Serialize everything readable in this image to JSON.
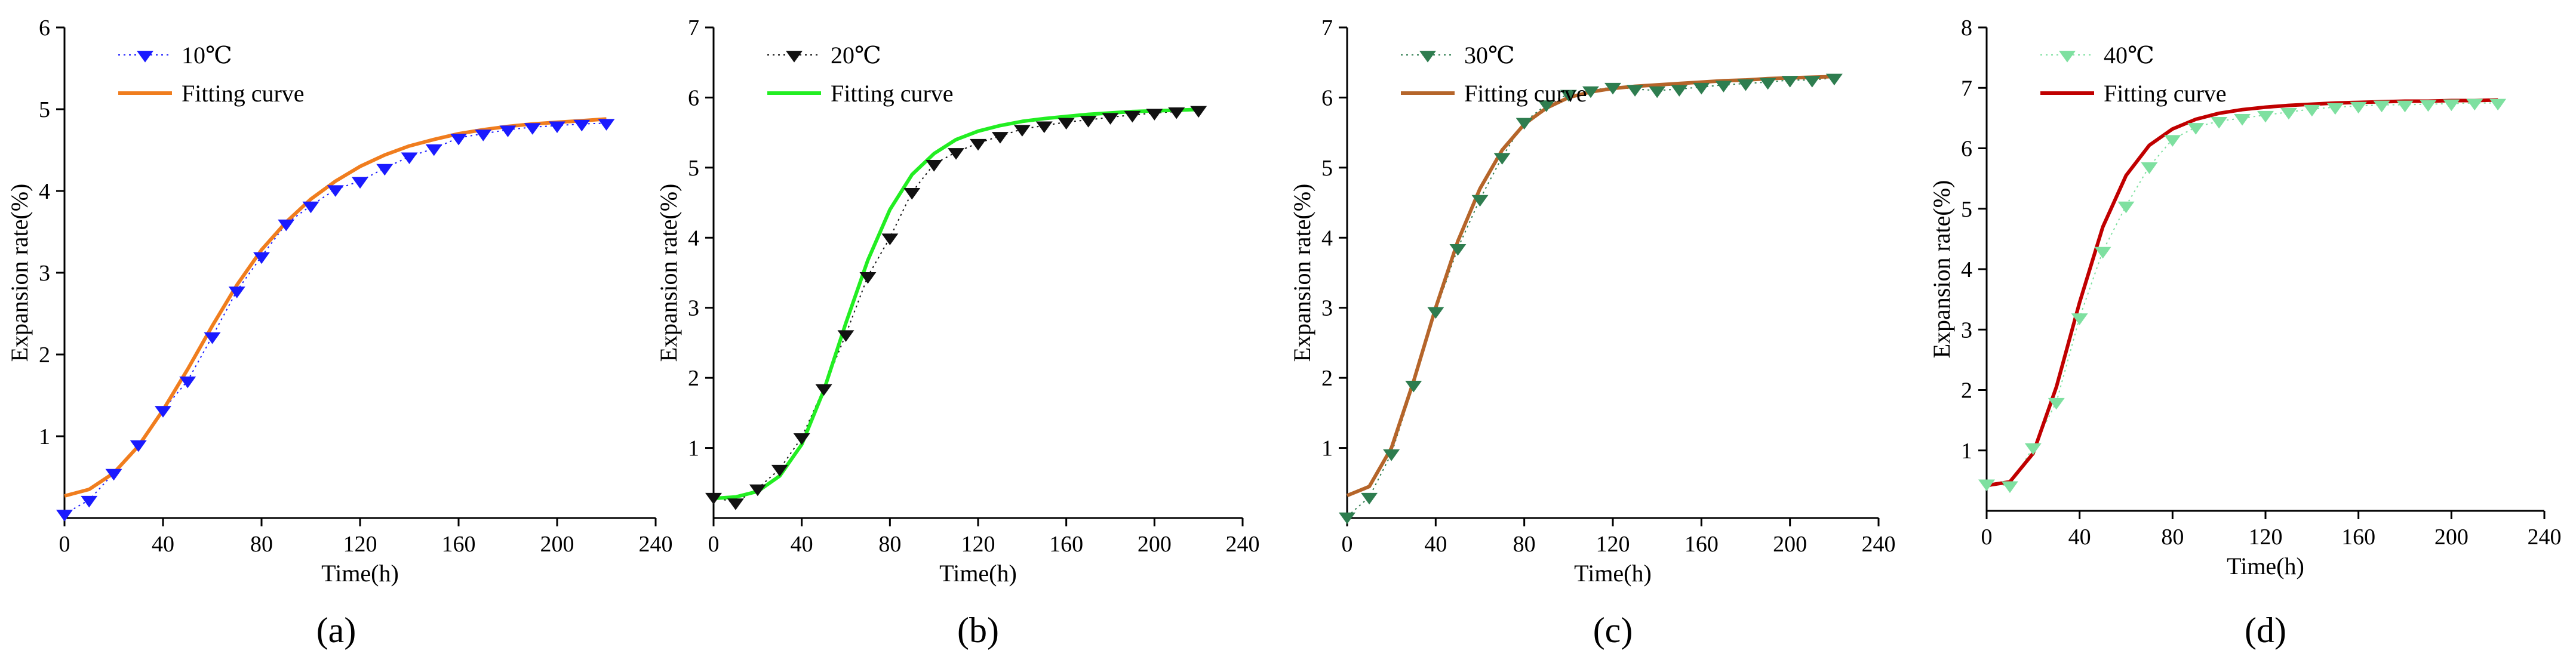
{
  "chart_data": [
    {
      "type": "scatter",
      "panel_label": "(a)",
      "xlabel": "Time(h)",
      "ylabel": "Expansion rate(%)",
      "xlim": [
        0,
        240
      ],
      "ylim": [
        0,
        6
      ],
      "xticks": [
        "0",
        "40",
        "80",
        "120",
        "160",
        "200",
        "240"
      ],
      "yticks": [
        "1",
        "2",
        "3",
        "4",
        "5",
        "6"
      ],
      "legend_position": "top-left",
      "series": [
        {
          "name": "10℃",
          "kind": "markers",
          "marker": "triangle-down",
          "color": "#1a1aff",
          "x": [
            0,
            10,
            20,
            30,
            40,
            50,
            60,
            70,
            80,
            90,
            100,
            110,
            120,
            130,
            140,
            150,
            160,
            170,
            180,
            190,
            200,
            210,
            220
          ],
          "y": [
            0.05,
            0.22,
            0.55,
            0.9,
            1.32,
            1.68,
            2.22,
            2.78,
            3.2,
            3.6,
            3.82,
            4.02,
            4.12,
            4.28,
            4.42,
            4.52,
            4.65,
            4.7,
            4.75,
            4.78,
            4.8,
            4.82,
            4.83
          ]
        },
        {
          "name": "Fitting curve",
          "kind": "line",
          "color": "#f07d1e",
          "x": [
            0,
            10,
            20,
            30,
            40,
            50,
            60,
            70,
            80,
            90,
            100,
            110,
            120,
            130,
            140,
            150,
            160,
            170,
            180,
            190,
            200,
            210,
            220
          ],
          "y": [
            0.27,
            0.35,
            0.55,
            0.88,
            1.32,
            1.82,
            2.35,
            2.85,
            3.28,
            3.62,
            3.9,
            4.12,
            4.3,
            4.44,
            4.55,
            4.63,
            4.7,
            4.75,
            4.79,
            4.82,
            4.84,
            4.86,
            4.88
          ]
        }
      ]
    },
    {
      "type": "scatter",
      "panel_label": "(b)",
      "xlabel": "Time(h)",
      "ylabel": "Expansion rate(%)",
      "xlim": [
        0,
        240
      ],
      "ylim": [
        0,
        7
      ],
      "xticks": [
        "0",
        "40",
        "80",
        "120",
        "160",
        "200",
        "240"
      ],
      "yticks": [
        "1",
        "2",
        "3",
        "4",
        "5",
        "6",
        "7"
      ],
      "legend_position": "top-left",
      "series": [
        {
          "name": "20℃",
          "kind": "markers",
          "marker": "triangle-down",
          "color": "#111111",
          "x": [
            0,
            10,
            20,
            30,
            40,
            50,
            60,
            70,
            80,
            90,
            100,
            110,
            120,
            130,
            140,
            150,
            160,
            170,
            180,
            190,
            200,
            210,
            220
          ],
          "y": [
            0.3,
            0.22,
            0.42,
            0.7,
            1.15,
            1.85,
            2.62,
            3.45,
            4.0,
            4.65,
            5.05,
            5.22,
            5.35,
            5.45,
            5.55,
            5.6,
            5.65,
            5.68,
            5.72,
            5.75,
            5.78,
            5.8,
            5.82
          ]
        },
        {
          "name": "Fitting curve",
          "kind": "line",
          "color": "#22ee22",
          "x": [
            0,
            10,
            20,
            30,
            40,
            50,
            60,
            70,
            80,
            90,
            100,
            110,
            120,
            130,
            140,
            150,
            160,
            170,
            180,
            190,
            200,
            210,
            220
          ],
          "y": [
            0.28,
            0.3,
            0.38,
            0.6,
            1.05,
            1.82,
            2.78,
            3.68,
            4.4,
            4.9,
            5.2,
            5.4,
            5.52,
            5.6,
            5.66,
            5.7,
            5.73,
            5.76,
            5.78,
            5.8,
            5.81,
            5.82,
            5.83
          ]
        }
      ]
    },
    {
      "type": "scatter",
      "panel_label": "(c)",
      "xlabel": "Time(h)",
      "ylabel": "Expansion rate(%)",
      "xlim": [
        0,
        240
      ],
      "ylim": [
        0,
        7
      ],
      "xticks": [
        "0",
        "40",
        "80",
        "120",
        "160",
        "200",
        "240"
      ],
      "yticks": [
        "1",
        "2",
        "3",
        "4",
        "5",
        "6",
        "7"
      ],
      "legend_position": "top-left",
      "series": [
        {
          "name": "30℃",
          "kind": "markers",
          "marker": "triangle-down",
          "color": "#2e7d4f",
          "x": [
            0,
            10,
            20,
            30,
            40,
            50,
            60,
            70,
            80,
            90,
            100,
            110,
            120,
            130,
            140,
            150,
            160,
            170,
            180,
            190,
            200,
            210,
            220
          ],
          "y": [
            0.02,
            0.3,
            0.92,
            1.9,
            2.95,
            3.85,
            4.55,
            5.15,
            5.65,
            5.9,
            6.05,
            6.1,
            6.15,
            6.12,
            6.1,
            6.12,
            6.15,
            6.18,
            6.2,
            6.22,
            6.25,
            6.25,
            6.28
          ]
        },
        {
          "name": "Fitting curve",
          "kind": "line",
          "color": "#b5652a",
          "x": [
            0,
            10,
            20,
            30,
            40,
            50,
            60,
            70,
            80,
            90,
            100,
            110,
            120,
            130,
            140,
            150,
            160,
            170,
            180,
            190,
            200,
            210,
            220
          ],
          "y": [
            0.32,
            0.45,
            1.0,
            1.95,
            3.0,
            3.95,
            4.7,
            5.25,
            5.62,
            5.85,
            6.0,
            6.08,
            6.13,
            6.16,
            6.18,
            6.2,
            6.22,
            6.24,
            6.25,
            6.27,
            6.28,
            6.29,
            6.3
          ]
        }
      ]
    },
    {
      "type": "scatter",
      "panel_label": "(d)",
      "xlabel": "Time(h)",
      "ylabel": "Expansion rate(%)",
      "xlim": [
        0,
        240
      ],
      "ylim": [
        0,
        8
      ],
      "xticks": [
        "0",
        "40",
        "80",
        "120",
        "160",
        "200",
        "240"
      ],
      "yticks": [
        "1",
        "2",
        "3",
        "4",
        "5",
        "6",
        "7",
        "8"
      ],
      "legend_position": "top-left",
      "series": [
        {
          "name": "40℃",
          "kind": "markers",
          "marker": "triangle-down",
          "color": "#7ee0a0",
          "x": [
            0,
            10,
            20,
            30,
            40,
            50,
            60,
            70,
            80,
            90,
            100,
            110,
            120,
            130,
            140,
            150,
            160,
            170,
            180,
            190,
            200,
            210,
            220
          ],
          "y": [
            0.45,
            0.42,
            1.05,
            1.8,
            3.2,
            4.3,
            5.05,
            5.7,
            6.15,
            6.35,
            6.45,
            6.5,
            6.55,
            6.6,
            6.65,
            6.68,
            6.7,
            6.72,
            6.72,
            6.73,
            6.74,
            6.75,
            6.75
          ]
        },
        {
          "name": "Fitting curve",
          "kind": "line",
          "color": "#c00000",
          "x": [
            0,
            10,
            20,
            30,
            40,
            50,
            60,
            70,
            80,
            90,
            100,
            110,
            120,
            130,
            140,
            150,
            160,
            170,
            180,
            190,
            200,
            210,
            220
          ],
          "y": [
            0.42,
            0.48,
            0.95,
            2.05,
            3.45,
            4.7,
            5.55,
            6.05,
            6.32,
            6.48,
            6.58,
            6.64,
            6.68,
            6.71,
            6.73,
            6.75,
            6.76,
            6.77,
            6.78,
            6.78,
            6.79,
            6.79,
            6.8
          ]
        }
      ]
    }
  ]
}
